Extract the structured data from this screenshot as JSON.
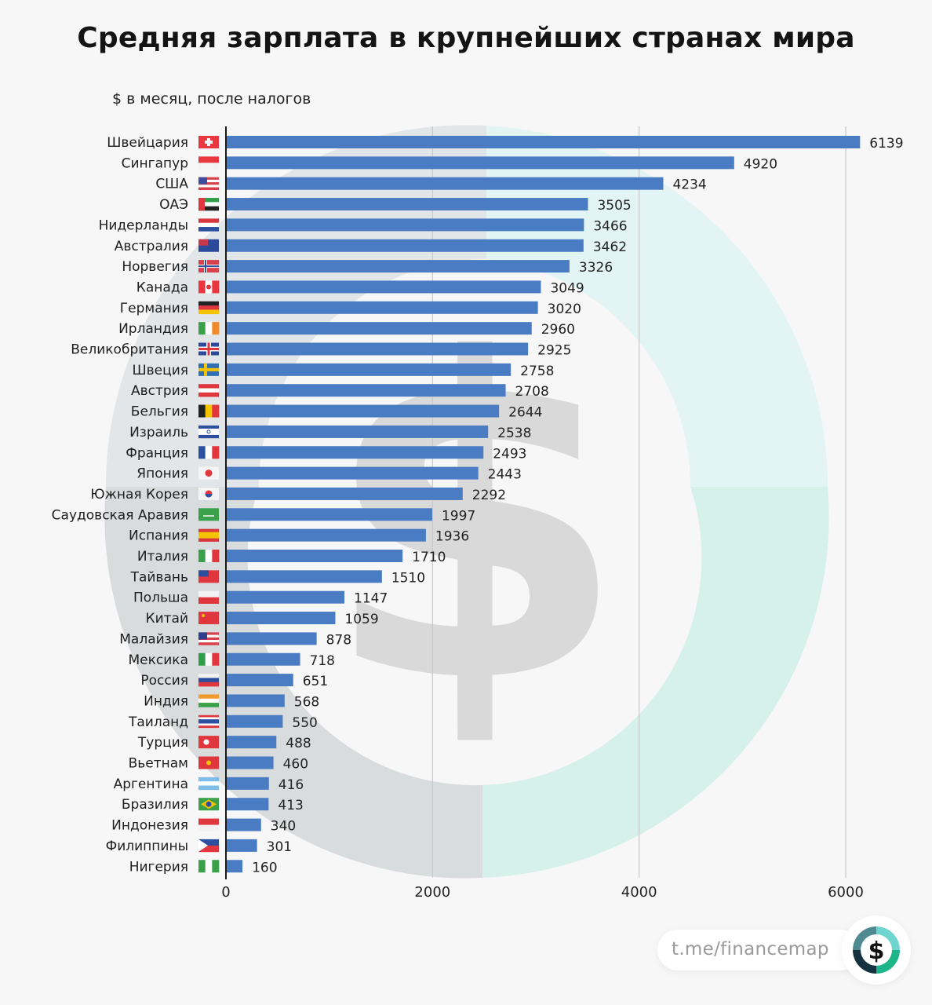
{
  "header": {
    "title": "Средняя зарплата в крупнейших странах мира",
    "subtitle": "$ в месяц, после налогов"
  },
  "colors": {
    "bar": "#4a7cc4",
    "grid": "#c8c8c8",
    "axis": "#1a1a1a",
    "watermark_gray": "#d8dadc",
    "watermark_teal": "#d6f0ec",
    "watermark_light_teal": "#e2f4f4"
  },
  "footer": {
    "link_text": "t.me/financemap",
    "logo_icon": "dollar-ring-logo-icon",
    "logo_glyph": "$"
  },
  "chart_data": {
    "type": "bar",
    "orientation": "horizontal",
    "title": "Средняя зарплата в крупнейших странах мира",
    "subtitle": "$ в месяц, после налогов",
    "xlabel": "",
    "ylabel": "",
    "xlim": [
      0,
      6000
    ],
    "xticks": [
      0,
      2000,
      4000,
      6000
    ],
    "grid": true,
    "legend": "none",
    "categories": [
      "Швейцария",
      "Сингапур",
      "США",
      "ОАЭ",
      "Нидерланды",
      "Австралия",
      "Норвегия",
      "Канада",
      "Германия",
      "Ирландия",
      "Великобритания",
      "Швеция",
      "Австрия",
      "Бельгия",
      "Израиль",
      "Франция",
      "Япония",
      "Южная Корея",
      "Саудовская Аравия",
      "Испания",
      "Италия",
      "Тайвань",
      "Польша",
      "Китай",
      "Малайзия",
      "Мексика",
      "Россия",
      "Индия",
      "Таиланд",
      "Турция",
      "Вьетнам",
      "Аргентина",
      "Бразилия",
      "Индонезия",
      "Филиппины",
      "Нигерия"
    ],
    "values": [
      6139,
      4920,
      4234,
      3505,
      3466,
      3462,
      3326,
      3049,
      3020,
      2960,
      2925,
      2758,
      2708,
      2644,
      2538,
      2493,
      2443,
      2292,
      1997,
      1936,
      1710,
      1510,
      1147,
      1059,
      878,
      718,
      651,
      568,
      550,
      488,
      460,
      416,
      413,
      340,
      301,
      160
    ],
    "flags": [
      "switzerland",
      "singapore",
      "usa",
      "uae",
      "netherlands",
      "australia",
      "norway",
      "canada",
      "germany",
      "ireland",
      "uk",
      "sweden",
      "austria",
      "belgium",
      "israel",
      "france",
      "japan",
      "south-korea",
      "saudi-arabia",
      "spain",
      "italy",
      "taiwan",
      "poland",
      "china",
      "malaysia",
      "mexico",
      "russia",
      "india",
      "thailand",
      "turkey",
      "vietnam",
      "argentina",
      "brazil",
      "indonesia",
      "philippines",
      "nigeria"
    ]
  }
}
